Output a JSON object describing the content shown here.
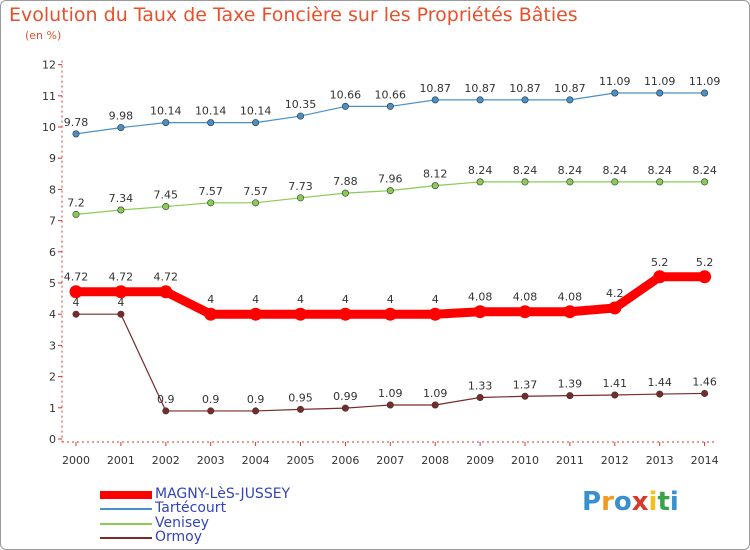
{
  "title": "Evolution du Taux de Taxe Foncière sur les Propriétés Bâties",
  "unit_label": "(en %)",
  "logo": {
    "chars": [
      "P",
      "r",
      "o",
      "x",
      "i",
      "t",
      "i"
    ],
    "colors": [
      "#3a8fd0",
      "#f29a1e",
      "#3a8fd0",
      "#d43b2b",
      "#f2c21a",
      "#3aa34a",
      "#3a8fd0"
    ]
  },
  "chart_data": {
    "type": "line",
    "x": [
      "2000",
      "2001",
      "2002",
      "2003",
      "2004",
      "2005",
      "2006",
      "2007",
      "2008",
      "2009",
      "2010",
      "2011",
      "2012",
      "2013",
      "2014"
    ],
    "ylim": [
      0,
      12
    ],
    "yticks": [
      "0",
      "1",
      "2",
      "3",
      "4",
      "5",
      "6",
      "7",
      "8",
      "9",
      "10",
      "11",
      "12"
    ],
    "grid": false,
    "legend_position": "bottom-left",
    "series": [
      {
        "name": "MAGNY-LèS-JUSSEY",
        "color": "#ff0000",
        "values": [
          4.72,
          4.72,
          4.72,
          4,
          4,
          4,
          4,
          4,
          4,
          4.08,
          4.08,
          4.08,
          4.2,
          5.2,
          5.2
        ],
        "labels": [
          "4.72",
          "4.72",
          "4.72",
          "4",
          "4",
          "4",
          "4",
          "4",
          "4",
          "4.08",
          "4.08",
          "4.08",
          "4.2",
          "5.2",
          "5.2"
        ]
      },
      {
        "name": "Tartécourt",
        "color": "#4a90c8",
        "values": [
          9.78,
          9.98,
          10.14,
          10.14,
          10.14,
          10.35,
          10.66,
          10.66,
          10.87,
          10.87,
          10.87,
          10.87,
          11.09,
          11.09,
          11.09
        ],
        "labels": [
          "9.78",
          "9.98",
          "10.14",
          "10.14",
          "10.14",
          "10.35",
          "10.66",
          "10.66",
          "10.87",
          "10.87",
          "10.87",
          "10.87",
          "11.09",
          "11.09",
          "11.09"
        ]
      },
      {
        "name": "Venisey",
        "color": "#88cc55",
        "values": [
          7.2,
          7.34,
          7.45,
          7.57,
          7.57,
          7.73,
          7.88,
          7.96,
          8.12,
          8.24,
          8.24,
          8.24,
          8.24,
          8.24,
          8.24
        ],
        "labels": [
          "7.2",
          "7.34",
          "7.45",
          "7.57",
          "7.57",
          "7.73",
          "7.88",
          "7.96",
          "8.12",
          "8.24",
          "8.24",
          "8.24",
          "8.24",
          "8.24",
          "8.24"
        ]
      },
      {
        "name": "Ormoy",
        "color": "#7a2a2a",
        "values": [
          4,
          4,
          0.9,
          0.9,
          0.9,
          0.95,
          0.99,
          1.09,
          1.09,
          1.33,
          1.37,
          1.39,
          1.41,
          1.44,
          1.46
        ],
        "labels": [
          "4",
          "4",
          "0.9",
          "0.9",
          "0.9",
          "0.95",
          "0.99",
          "1.09",
          "1.09",
          "1.33",
          "1.37",
          "1.39",
          "1.41",
          "1.44",
          "1.46"
        ]
      }
    ]
  }
}
